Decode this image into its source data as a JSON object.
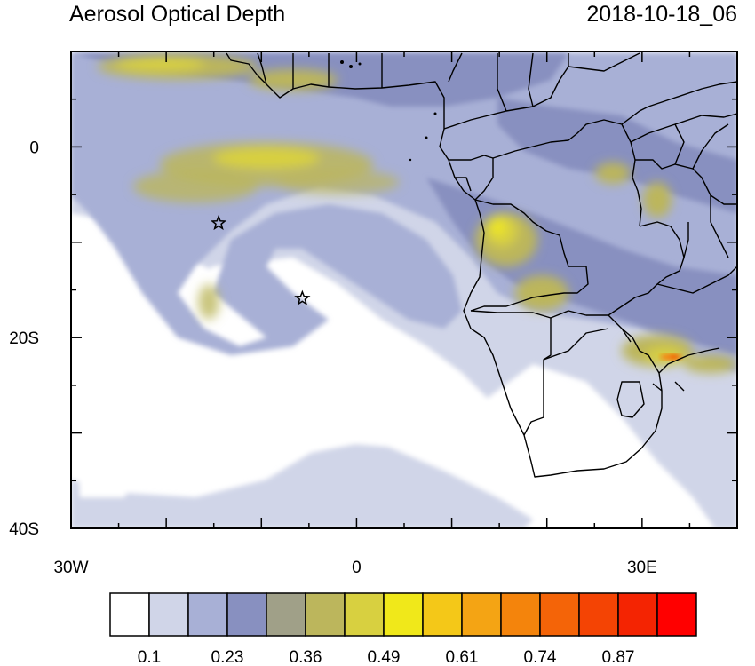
{
  "title_left": "Aerosol Optical Depth",
  "title_right": "2018-10-18_06",
  "map": {
    "variable": "Aerosol Optical Depth",
    "lon_range": [
      -30,
      40
    ],
    "lat_range": [
      -40,
      10
    ],
    "lon_ticks": [
      {
        "value": -30,
        "label": "30W"
      },
      {
        "value": 0,
        "label": "0"
      },
      {
        "value": 30,
        "label": "30E"
      }
    ],
    "lat_ticks": [
      {
        "value": 0,
        "label": "0"
      },
      {
        "value": -20,
        "label": "20S"
      },
      {
        "value": -40,
        "label": "40S"
      }
    ],
    "markers": [
      {
        "type": "star",
        "lon": -14.5,
        "lat": -8.0
      },
      {
        "type": "star",
        "lon": -5.7,
        "lat": -15.9
      }
    ]
  },
  "colorbar": {
    "colors": [
      "#ffffff",
      "#d0d5e8",
      "#a8b0d6",
      "#8890c0",
      "#a0a088",
      "#bcb65c",
      "#d8d040",
      "#f0e81a",
      "#f4c818",
      "#f4a414",
      "#f4840c",
      "#f46408",
      "#f44404",
      "#f42402",
      "#ff0000"
    ],
    "labels": [
      "0.1",
      "0.23",
      "0.36",
      "0.49",
      "0.61",
      "0.74",
      "0.87"
    ]
  }
}
